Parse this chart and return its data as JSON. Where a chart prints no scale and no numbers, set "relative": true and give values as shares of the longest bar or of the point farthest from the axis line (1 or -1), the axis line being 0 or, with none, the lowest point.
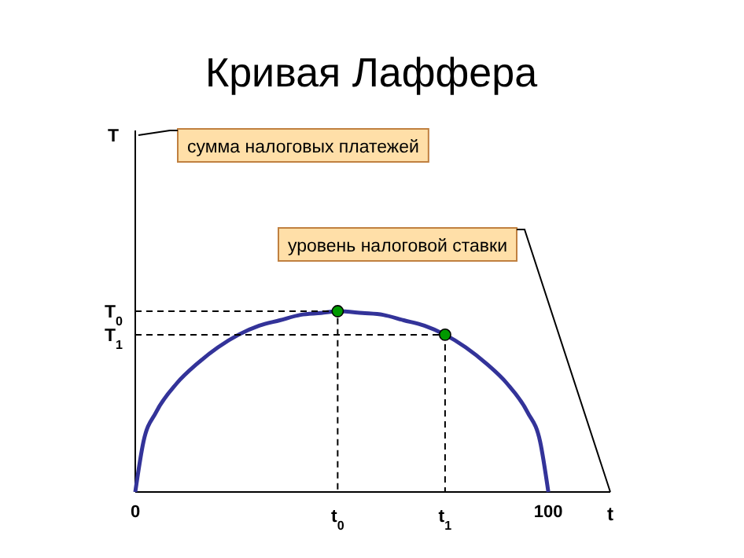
{
  "chart_data": {
    "type": "line",
    "title": "Кривая Лаффера",
    "xlabel": "t",
    "relative": true,
    "xlim": [
      0,
      115
    ],
    "xticks": [
      0,
      100
    ],
    "series": [
      {
        "type": "line",
        "color": "#333399",
        "x": [
          0,
          2,
          5,
          10,
          15,
          20,
          25,
          30,
          35,
          40,
          45,
          49,
          55,
          60,
          65,
          70,
          75,
          80,
          85,
          90,
          95,
          98,
          100
        ],
        "values": [
          0,
          0.28,
          0.44,
          0.6,
          0.71,
          0.8,
          0.87,
          0.92,
          0.95,
          0.98,
          0.99,
          1,
          0.99,
          0.98,
          0.95,
          0.92,
          0.87,
          0.8,
          0.71,
          0.6,
          0.44,
          0.28,
          0
        ]
      },
      {
        "type": "scatter",
        "color": "#009900",
        "marker": "circle",
        "x": [
          49,
          75
        ],
        "values": [
          1,
          0.87
        ]
      }
    ],
    "annotations": [
      "T",
      "T$_{0}$",
      "T$_{1}$",
      "t$_{0}$",
      "t$_{1}$",
      "сумма налоговых платежей",
      "уровень налоговой ставки"
    ]
  }
}
